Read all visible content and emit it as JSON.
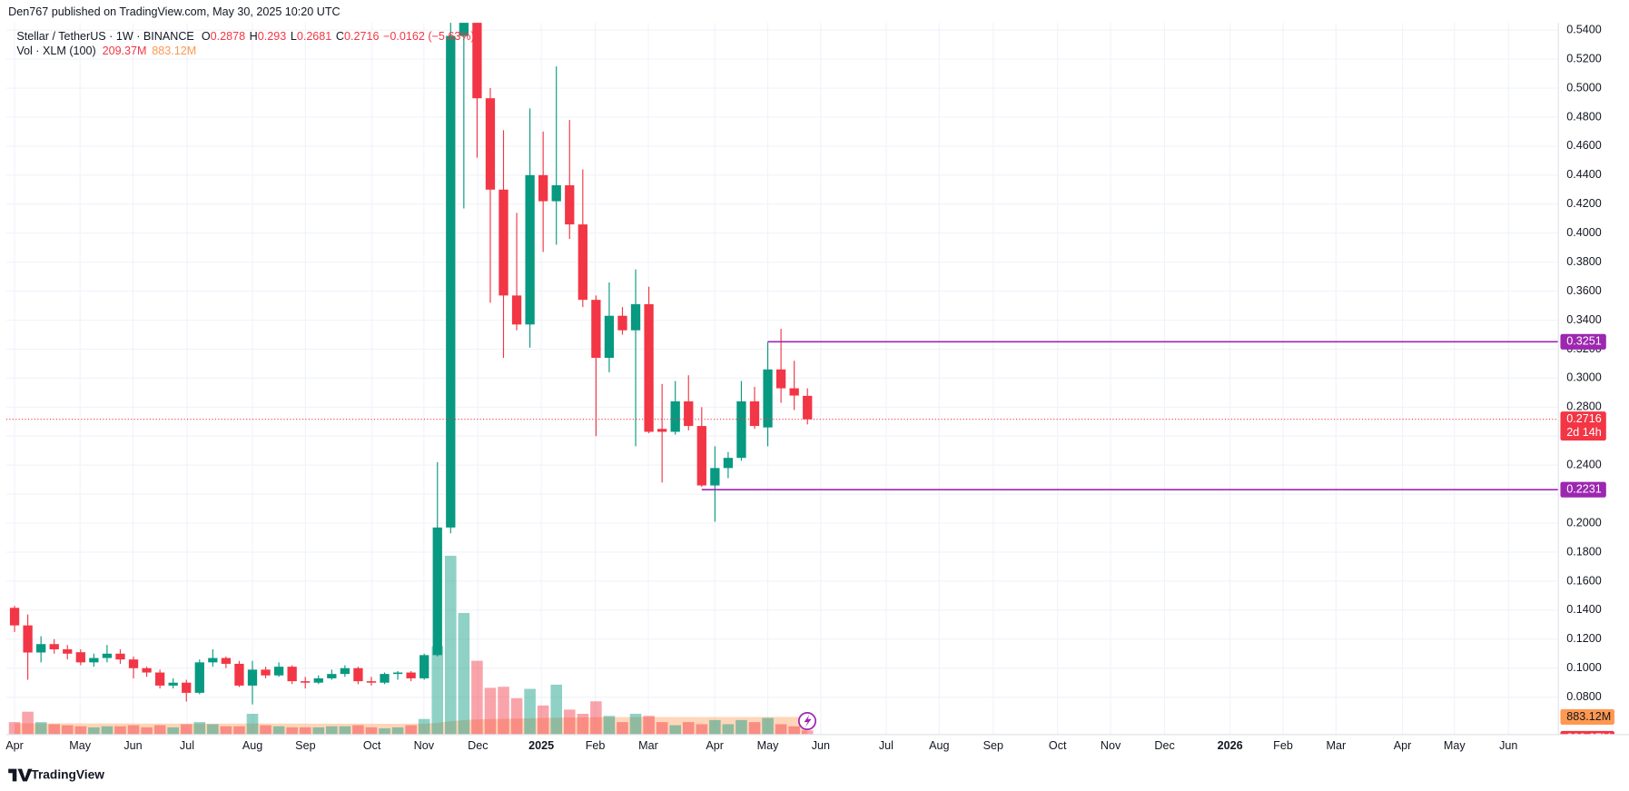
{
  "header": "Den767 published on TradingView.com, May 30, 2025 10:20 UTC",
  "footer": "TradingView",
  "chart_data": {
    "type": "candlestick",
    "title": "Stellar / TetherUS · 1W · BINANCE",
    "ohlc_letters": [
      "O",
      "H",
      "L",
      "C"
    ],
    "change": "−0.0162 (−5.63%)",
    "open": [
      0.1416,
      0.1295,
      0.1108,
      0.1166,
      0.113,
      0.111,
      0.104,
      0.107,
      0.11,
      0.106,
      0.1,
      0.097,
      0.088,
      0.09,
      0.083,
      0.104,
      0.107,
      0.103,
      0.088,
      0.099,
      0.095,
      0.101,
      0.091,
      0.09,
      0.093,
      0.096,
      0.1,
      0.091,
      0.09,
      0.096,
      0.097,
      0.093,
      0.109,
      0.197,
      0.536,
      0.555,
      0.493,
      0.43,
      0.357,
      0.337,
      0.44,
      0.422,
      0.433,
      0.406,
      0.354,
      0.314,
      0.343,
      0.333,
      0.351,
      0.265,
      0.263,
      0.284,
      0.267,
      0.226,
      0.238,
      0.245,
      0.284,
      0.266,
      0.306,
      0.293,
      0.2878
    ],
    "high": [
      0.143,
      0.137,
      0.122,
      0.12,
      0.116,
      0.113,
      0.11,
      0.116,
      0.113,
      0.108,
      0.101,
      0.099,
      0.093,
      0.092,
      0.106,
      0.113,
      0.108,
      0.105,
      0.105,
      0.101,
      0.104,
      0.102,
      0.094,
      0.095,
      0.099,
      0.102,
      0.101,
      0.094,
      0.097,
      0.098,
      0.098,
      0.11,
      0.242,
      0.56,
      0.637,
      0.6,
      0.5,
      0.471,
      0.414,
      0.486,
      0.47,
      0.515,
      0.478,
      0.444,
      0.357,
      0.366,
      0.349,
      0.375,
      0.363,
      0.296,
      0.298,
      0.302,
      0.28,
      0.253,
      0.249,
      0.298,
      0.294,
      0.325,
      0.334,
      0.312,
      0.293
    ],
    "low": [
      0.125,
      0.092,
      0.104,
      0.11,
      0.106,
      0.102,
      0.101,
      0.104,
      0.103,
      0.093,
      0.094,
      0.086,
      0.086,
      0.077,
      0.082,
      0.101,
      0.1,
      0.087,
      0.075,
      0.093,
      0.094,
      0.089,
      0.086,
      0.089,
      0.092,
      0.094,
      0.089,
      0.088,
      0.089,
      0.092,
      0.091,
      0.092,
      0.108,
      0.193,
      0.417,
      0.452,
      0.352,
      0.314,
      0.333,
      0.321,
      0.387,
      0.392,
      0.396,
      0.349,
      0.26,
      0.304,
      0.33,
      0.253,
      0.262,
      0.228,
      0.261,
      0.264,
      0.225,
      0.201,
      0.231,
      0.243,
      0.265,
      0.253,
      0.283,
      0.278,
      0.2681
    ],
    "close": [
      0.1295,
      0.1108,
      0.1166,
      0.113,
      0.11,
      0.104,
      0.107,
      0.11,
      0.106,
      0.1,
      0.097,
      0.088,
      0.09,
      0.083,
      0.104,
      0.107,
      0.103,
      0.088,
      0.099,
      0.095,
      0.101,
      0.091,
      0.09,
      0.093,
      0.096,
      0.1,
      0.091,
      0.09,
      0.096,
      0.097,
      0.093,
      0.109,
      0.197,
      0.536,
      0.555,
      0.493,
      0.43,
      0.357,
      0.337,
      0.44,
      0.422,
      0.433,
      0.406,
      0.354,
      0.314,
      0.343,
      0.333,
      0.351,
      0.263,
      0.263,
      0.284,
      0.267,
      0.226,
      0.238,
      0.245,
      0.284,
      0.267,
      0.306,
      0.293,
      0.288,
      0.2716
    ],
    "up_color": "#089981",
    "down_color": "#f23645",
    "ylim": [
      0.0542,
      0.545
    ],
    "yticks": [
      {
        "value": 0.08,
        "label": "0.0800"
      },
      {
        "value": 0.1,
        "label": "0.1000"
      },
      {
        "value": 0.12,
        "label": "0.1200"
      },
      {
        "value": 0.14,
        "label": "0.1400"
      },
      {
        "value": 0.16,
        "label": "0.1600"
      },
      {
        "value": 0.18,
        "label": "0.1800"
      },
      {
        "value": 0.2,
        "label": "0.2000"
      },
      {
        "value": 0.22,
        "label": "0.2200"
      },
      {
        "value": 0.24,
        "label": "0.2400"
      },
      {
        "value": 0.26,
        "label": "0.2600"
      },
      {
        "value": 0.28,
        "label": "0.2800"
      },
      {
        "value": 0.3,
        "label": "0.3000"
      },
      {
        "value": 0.32,
        "label": "0.3200"
      },
      {
        "value": 0.34,
        "label": "0.3400"
      },
      {
        "value": 0.36,
        "label": "0.3600"
      },
      {
        "value": 0.38,
        "label": "0.3800"
      },
      {
        "value": 0.4,
        "label": "0.4000"
      },
      {
        "value": 0.42,
        "label": "0.4200"
      },
      {
        "value": 0.44,
        "label": "0.4400"
      },
      {
        "value": 0.46,
        "label": "0.4600"
      },
      {
        "value": 0.48,
        "label": "0.4800"
      },
      {
        "value": 0.5,
        "label": "0.5000"
      },
      {
        "value": 0.52,
        "label": "0.5200"
      },
      {
        "value": 0.54,
        "label": "0.5400"
      }
    ],
    "grid": true,
    "xtick_labels": [
      "Apr",
      "May",
      "Jun",
      "Jul",
      "Aug",
      "Sep",
      "Oct",
      "Nov",
      "Dec",
      "2025",
      "Feb",
      "Mar",
      "Apr",
      "May",
      "Jun",
      "Jul",
      "Aug",
      "Sep",
      "Oct",
      "Nov",
      "Dec",
      "2026",
      "Feb",
      "Mar",
      "Apr",
      "May",
      "Jun"
    ],
    "last_price": {
      "value": 0.2716,
      "countdown": "2d 14h",
      "color": "#f23645"
    },
    "hlines": [
      {
        "value": 0.3251,
        "color": "#9c27b0"
      },
      {
        "value": 0.2231,
        "color": "#9c27b0"
      }
    ],
    "volume": {
      "title": "Vol · XLM (100)",
      "values": [
        624,
        1144,
        624,
        520,
        468,
        416,
        364,
        416,
        416,
        468,
        364,
        468,
        364,
        520,
        624,
        520,
        416,
        416,
        1040,
        468,
        416,
        364,
        364,
        364,
        416,
        416,
        468,
        364,
        312,
        364,
        468,
        780,
        4420,
        8944,
        6084,
        3692,
        2340,
        2392,
        1820,
        2288,
        1456,
        2496,
        1248,
        1040,
        1664,
        936,
        624,
        1040,
        936,
        624,
        468,
        624,
        520,
        728,
        520,
        728,
        624,
        832,
        520,
        416,
        209.37
      ],
      "last_label": "209.37M",
      "ylim": [
        0,
        35600
      ]
    },
    "volume_ma": {
      "values": [
        560,
        565,
        565,
        563,
        562,
        560,
        558,
        557,
        556,
        555,
        553,
        552,
        550,
        549,
        550,
        551,
        550,
        548,
        555,
        554,
        553,
        551,
        549,
        547,
        546,
        545,
        545,
        543,
        541,
        540,
        541,
        545,
        584,
        669,
        724,
        755,
        773,
        790,
        802,
        820,
        828,
        848,
        855,
        860,
        872,
        873,
        872,
        878,
        880,
        879,
        877,
        878,
        877,
        880,
        878,
        881,
        881,
        884,
        883,
        882,
        883.12
      ],
      "last_label": "883.12M",
      "color": "#ff9850"
    }
  }
}
